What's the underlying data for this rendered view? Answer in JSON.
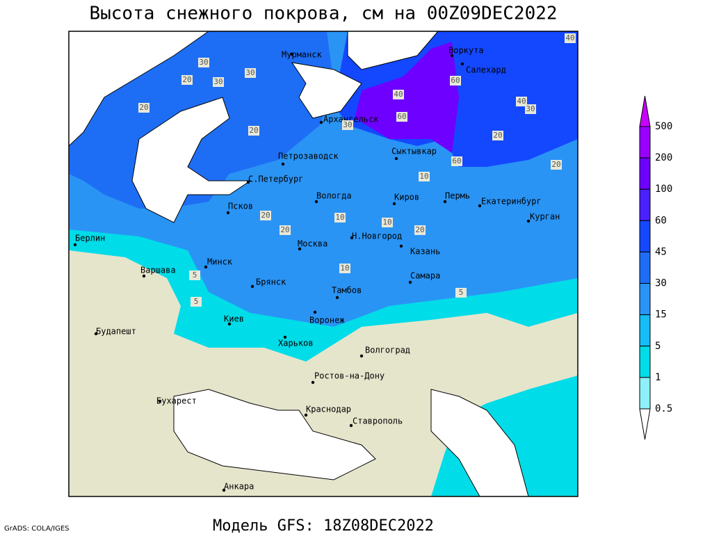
{
  "header": {
    "title": "Высота снежного покрова, см на 00Z09DEC2022"
  },
  "footer": {
    "model": "Модель GFS: 18Z08DEC2022",
    "credit": "GrADS: COLA/IGES"
  },
  "cities": [
    "Мурманск",
    "Воркута",
    "Салехард",
    "Архангельск",
    "Петрозаводск",
    "С.Петербург",
    "Вологда",
    "Сыктывкар",
    "Киров",
    "Пермь",
    "Екатеринбург",
    "Курган",
    "Псков",
    "Берлин",
    "Н.Новгород",
    "Москва",
    "Казань",
    "Минск",
    "Варшава",
    "Самара",
    "Брянск",
    "Тамбов",
    "Киев",
    "Воронеж",
    "Будапешт",
    "Харьков",
    "Волгоград",
    "Ростов-на-Дону",
    "Бухарест",
    "Краснодар",
    "Ставрополь",
    "Анкара"
  ],
  "contour_labels": [
    30,
    20,
    30,
    20,
    30,
    20,
    40,
    60,
    60,
    30,
    40,
    30,
    20,
    40,
    60,
    20,
    10,
    20,
    20,
    10,
    20,
    10,
    5,
    10,
    5,
    5
  ],
  "legend": {
    "levels": [
      500,
      200,
      100,
      60,
      45,
      30,
      15,
      5,
      1,
      0.5
    ],
    "colors": [
      "#c800ff",
      "#9a00ff",
      "#6e00ff",
      "#4a20ff",
      "#1448ff",
      "#1e6ef5",
      "#2a94f5",
      "#16bcf5",
      "#00dce8",
      "#8ef0f8",
      "#ffffff"
    ]
  }
}
